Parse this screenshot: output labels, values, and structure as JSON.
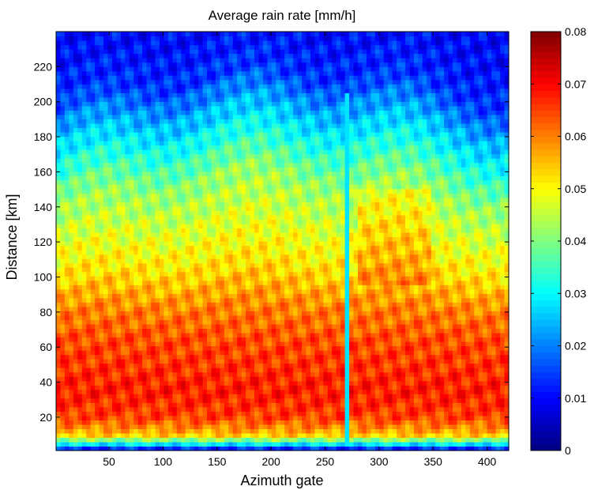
{
  "chart_data": {
    "type": "heatmap",
    "title": "Average rain rate [mm/h]",
    "xlabel": "Azimuth gate",
    "ylabel": "Distance [km]",
    "xlim": [
      1,
      420
    ],
    "ylim": [
      1,
      240
    ],
    "xticks": [
      50,
      100,
      150,
      200,
      250,
      300,
      350,
      400
    ],
    "yticks": [
      20,
      40,
      60,
      80,
      100,
      120,
      140,
      160,
      180,
      200,
      220
    ],
    "colorbar": {
      "min": 0,
      "max": 0.08,
      "ticks": [
        0,
        0.01,
        0.02,
        0.03,
        0.04,
        0.05,
        0.06,
        0.07,
        0.08
      ],
      "tick_labels": [
        "0",
        "0.01",
        "0.02",
        "0.03",
        "0.04",
        "0.05",
        "0.06",
        "0.07",
        "0.08"
      ],
      "colormap": "jet"
    },
    "approx_profile_by_distance_km": [
      {
        "distance": 2,
        "value": 0.012
      },
      {
        "distance": 5,
        "value": 0.03
      },
      {
        "distance": 10,
        "value": 0.055
      },
      {
        "distance": 20,
        "value": 0.065
      },
      {
        "distance": 35,
        "value": 0.068
      },
      {
        "distance": 50,
        "value": 0.066
      },
      {
        "distance": 65,
        "value": 0.064
      },
      {
        "distance": 80,
        "value": 0.06
      },
      {
        "distance": 100,
        "value": 0.052
      },
      {
        "distance": 120,
        "value": 0.047
      },
      {
        "distance": 140,
        "value": 0.042
      },
      {
        "distance": 160,
        "value": 0.033
      },
      {
        "distance": 180,
        "value": 0.024
      },
      {
        "distance": 200,
        "value": 0.014
      },
      {
        "distance": 220,
        "value": 0.011
      },
      {
        "distance": 240,
        "value": 0.01
      }
    ],
    "notable_features": [
      {
        "type": "vertical-stripe",
        "azimuth": 271,
        "value": 0.028
      },
      {
        "type": "dome-shaped-upper-boundary",
        "center_azimuth": 260
      }
    ]
  }
}
